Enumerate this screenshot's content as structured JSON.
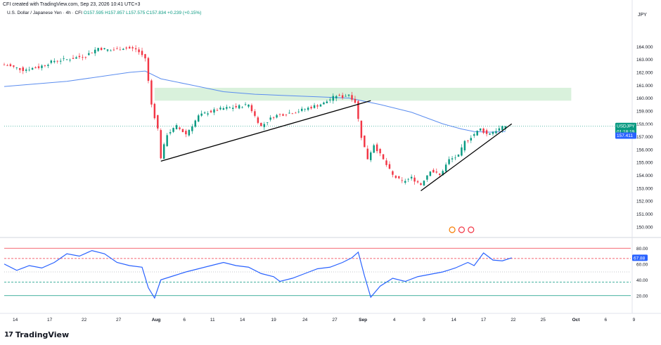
{
  "header": {
    "caption": "CFI created with TradingView.com, Sep 23, 2026 10:41 UTC+3",
    "symbol_name": "U.S. Dollar / Japanese Yen · 4h · CFI",
    "ohlc": "O157.595 H157.857 L157.575 C157.834 +0.239 (+0.15%)",
    "currency": "JPY"
  },
  "footer": {
    "logo_mark": "17",
    "logo_text": "TradingView"
  },
  "colors": {
    "up": "#089981",
    "down": "#f23645",
    "sma": "#5b8def",
    "rsi": "#2962ff",
    "zone": "#d2eed6",
    "price_tag": "#089981",
    "sma_tag": "#2962ff"
  },
  "chart_data": [
    {
      "type": "candlestick",
      "title": "U.S. Dollar / Japanese Yen · 4h · CFI",
      "y_axis_ticks": [
        150,
        151,
        152,
        153,
        154,
        155,
        156,
        157,
        158,
        159,
        160,
        161,
        162,
        163,
        164
      ],
      "y_axis_tick_labels": [
        "150.000",
        "151.000",
        "152.000",
        "153.000",
        "154.000",
        "155.000",
        "156.000",
        "157.000",
        "158.000",
        "159.000",
        "160.000",
        "161.000",
        "162.000",
        "163.000",
        "164.000"
      ],
      "ylim": [
        149.5,
        165
      ],
      "x_tick_labels": [
        "14",
        "17",
        "22",
        "27",
        "Aug",
        "6",
        "11",
        "14",
        "19",
        "24",
        "27",
        "Sep",
        "4",
        "9",
        "14",
        "17",
        "22",
        "25",
        "Oct",
        "6",
        "9"
      ],
      "price_path": [
        [
          0,
          162.6
        ],
        [
          6,
          162.2
        ],
        [
          11,
          162.4
        ],
        [
          16,
          162.9
        ],
        [
          20,
          163.0
        ],
        [
          26,
          163.3
        ],
        [
          30,
          163.9
        ],
        [
          34,
          163.7
        ],
        [
          38,
          163.9
        ],
        [
          42,
          163.8
        ],
        [
          45,
          163.1
        ],
        [
          47,
          159.5
        ],
        [
          49,
          157.6
        ],
        [
          50,
          155.4
        ],
        [
          52,
          157.2
        ],
        [
          55,
          157.8
        ],
        [
          58,
          157.2
        ],
        [
          62,
          158.6
        ],
        [
          65,
          158.9
        ],
        [
          70,
          159.2
        ],
        [
          74,
          159.3
        ],
        [
          78,
          159.5
        ],
        [
          80,
          158.6
        ],
        [
          82,
          157.8
        ],
        [
          86,
          158.6
        ],
        [
          90,
          158.8
        ],
        [
          94,
          159.0
        ],
        [
          98,
          159.3
        ],
        [
          102,
          159.6
        ],
        [
          106,
          160.2
        ],
        [
          108,
          160.1
        ],
        [
          110,
          160.3
        ],
        [
          112,
          159.7
        ],
        [
          114,
          157.0
        ],
        [
          116,
          155.3
        ],
        [
          118,
          156.4
        ],
        [
          121,
          155.2
        ],
        [
          124,
          154.0
        ],
        [
          127,
          153.5
        ],
        [
          130,
          153.8
        ],
        [
          133,
          153.3
        ],
        [
          136,
          154.4
        ],
        [
          139,
          154.0
        ],
        [
          142,
          155.2
        ],
        [
          145,
          155.5
        ],
        [
          147,
          156.6
        ],
        [
          150,
          157.2
        ],
        [
          152,
          157.6
        ],
        [
          154,
          157.2
        ],
        [
          157,
          157.5
        ],
        [
          160,
          157.834
        ]
      ],
      "series": [
        {
          "name": "SMA",
          "x": [
            0,
            20,
            40,
            45,
            50,
            60,
            70,
            80,
            90,
            100,
            110,
            120,
            130,
            140,
            146,
            150,
            155,
            160
          ],
          "values": [
            160.9,
            161.3,
            162.0,
            162.1,
            161.5,
            161.0,
            160.5,
            160.3,
            160.2,
            160.1,
            160.0,
            159.5,
            158.9,
            158.0,
            157.6,
            157.4,
            157.35,
            157.41
          ]
        },
        {
          "name": "Supply zone",
          "x": [
            48,
            181
          ],
          "band": [
            159.8,
            160.8
          ]
        },
        {
          "name": "Trendline 1",
          "x": [
            50,
            117
          ],
          "values": [
            155.1,
            159.8
          ]
        },
        {
          "name": "Trendline 2",
          "x": [
            133,
            162
          ],
          "values": [
            152.8,
            158.0
          ]
        }
      ],
      "last_price": {
        "symbol": "USDJPY",
        "price": "157.834",
        "countdown": "01:18:19",
        "sma_value": "157.411"
      }
    },
    {
      "type": "line",
      "title": "RSI",
      "y_axis_ticks": [
        20,
        40,
        60,
        80
      ],
      "y_axis_tick_labels": [
        "20.00",
        "40.00",
        "60.00",
        "80.00"
      ],
      "ylim": [
        10,
        90
      ],
      "levels": [
        80,
        67,
        50,
        37,
        20
      ],
      "current_value": "67.88",
      "x": [
        0,
        4,
        8,
        12,
        16,
        20,
        24,
        28,
        32,
        36,
        40,
        44,
        46,
        48,
        50,
        54,
        58,
        62,
        66,
        70,
        74,
        78,
        82,
        86,
        88,
        92,
        96,
        100,
        104,
        108,
        111,
        113,
        115,
        117,
        120,
        124,
        128,
        132,
        136,
        140,
        144,
        148,
        150,
        153,
        156,
        159,
        162
      ],
      "values": [
        60,
        52,
        58,
        55,
        62,
        73,
        70,
        77,
        73,
        62,
        58,
        56,
        30,
        17,
        40,
        45,
        50,
        54,
        58,
        62,
        58,
        56,
        48,
        44,
        38,
        42,
        48,
        54,
        56,
        62,
        68,
        75,
        45,
        18,
        32,
        42,
        38,
        44,
        47,
        50,
        55,
        62,
        58,
        74,
        65,
        64,
        67.88
      ]
    }
  ]
}
